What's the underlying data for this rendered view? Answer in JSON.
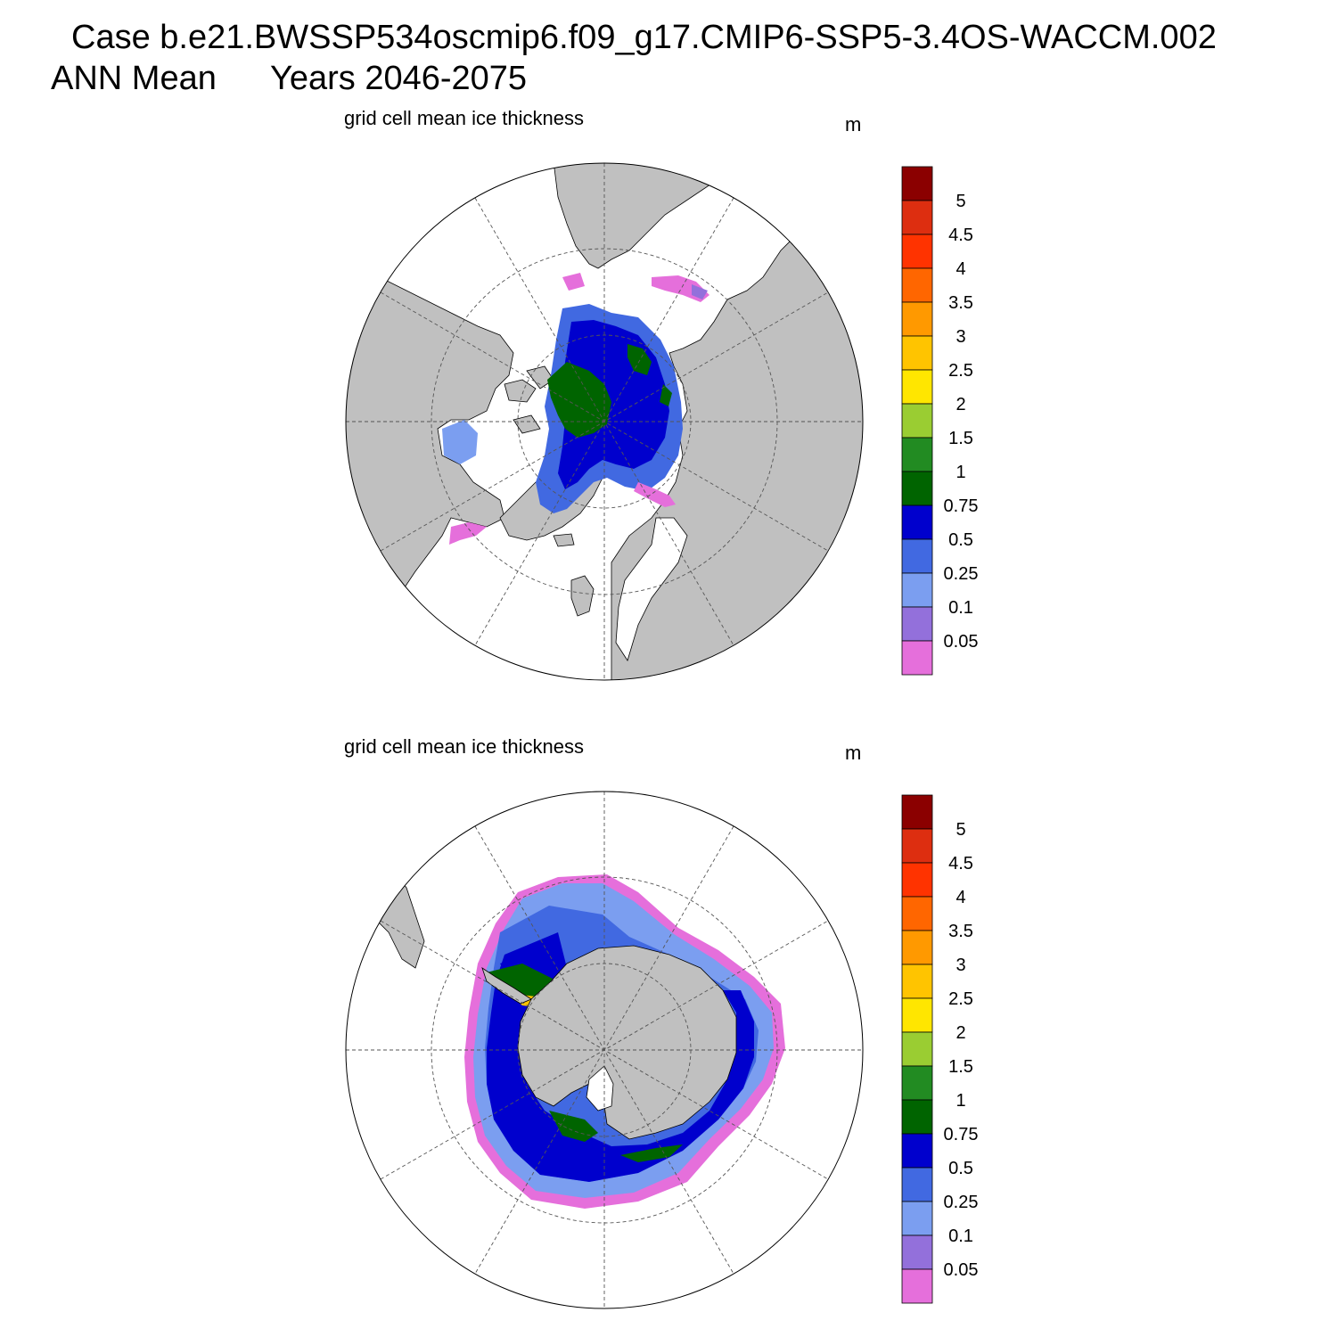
{
  "header": {
    "case_line": "Case b.e21.BWSSP534oscmip6.f09_g17.CMIP6-SSP5-3.4OS-WACCM.002",
    "period": "ANN Mean",
    "years": "Years 2046-2075"
  },
  "colors": {
    "land": "#c0c0c0",
    "ocean": "#ffffff",
    "levels": [
      "#e56fdb",
      "#9370db",
      "#7b9ef0",
      "#4169e1",
      "#0000cd",
      "#006400",
      "#228b22",
      "#9acd32",
      "#ffe600",
      "#ffc400",
      "#ff9900",
      "#ff6600",
      "#ff3300",
      "#dd2e10",
      "#8b0000"
    ]
  },
  "colorbar": {
    "tick_labels": [
      "0.05",
      "0.1",
      "0.25",
      "0.5",
      "0.75",
      "1",
      "1.5",
      "2",
      "2.5",
      "3",
      "3.5",
      "4",
      "4.5",
      "5"
    ]
  },
  "panels": [
    {
      "id": "north",
      "hemisphere": "Northern Hemisphere",
      "variable_title": "grid cell mean ice thickness",
      "units": "m"
    },
    {
      "id": "south",
      "hemisphere": "Southern Hemisphere",
      "variable_title": "grid cell mean ice thickness",
      "units": "m"
    }
  ]
}
